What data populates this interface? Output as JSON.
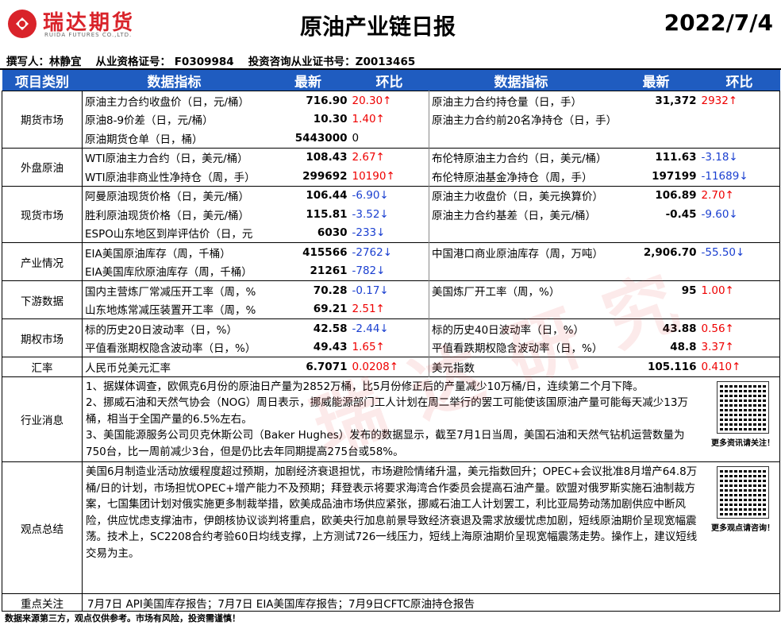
{
  "header": {
    "logo": "瑞达期货",
    "logo_en": "RUIDA FUTURES CO.,LTD.",
    "title": "原油产业链日报",
    "date": "2022/7/4"
  },
  "author": [
    "撰写人：林静宜",
    "从业资格证号：  F0309984",
    "投资咨询从业证书号：Z0013465"
  ],
  "table": {
    "columns": [
      "项目类别",
      "数据指标",
      "最新",
      "环比",
      "数据指标",
      "最新",
      "环比"
    ],
    "sections": [
      {
        "category": "期货市场",
        "rows": [
          [
            "原油主力合约收盘价（日，元/桶）",
            "716.90",
            "20.30↑",
            "原油主力合约持仓量（日，手）",
            "31,372",
            "2932↑"
          ],
          [
            "原油8-9价差（日，元/桶）",
            "10.30",
            "1.40↑",
            "原油主力合约前20名净持仓（日，手）",
            null,
            null
          ],
          [
            "原油期货仓单（日，桶）",
            "5443000",
            "0",
            null,
            null,
            null
          ]
        ]
      },
      {
        "category": "外盘原油",
        "rows": [
          [
            "WTI原油主力合约（日，美元/桶）",
            "108.43",
            "2.67↑",
            "布伦特原油主力合约（日，美元/桶）",
            "111.63",
            "-3.18↓"
          ],
          [
            " WTI原油非商业性净持仓（周，手）",
            "299692",
            "10190↑",
            "布伦特原油基金净持仓（周，手）",
            "197199",
            "-11689↓"
          ]
        ]
      },
      {
        "category": "现货市场",
        "rows": [
          [
            "阿曼原油现货价格（日，美元/桶）",
            "106.44",
            "-6.90↓",
            "原油主力收盘价（日，美元换算价）",
            "106.89",
            "2.70↑"
          ],
          [
            "胜利原油现货价格（日，美元/桶）",
            "115.81",
            "-3.52↓",
            "原油主力合约基差（日，美元/桶）",
            "-0.45",
            "-9.60↓"
          ],
          [
            "ESPO山东地区到岸评估价（日，元",
            "6030",
            "-233↓",
            null,
            null,
            null
          ]
        ]
      },
      {
        "category": "产业情况",
        "rows": [
          [
            "EIA美国原油库存（周，千桶）",
            "415566",
            "-2762↓",
            "中国港口商业原油库存（周，万吨）",
            "2,906.70",
            "-55.50↓"
          ],
          [
            "EIA美国库欣原油库存（周，千桶）",
            "21261",
            "-782↓",
            null,
            null,
            null
          ]
        ]
      },
      {
        "category": "下游数据",
        "rows": [
          [
            "国内主营炼厂常减压开工率（周，%",
            "70.28",
            "-0.17↓",
            "美国炼厂开工率（周，%）",
            "95",
            "1.00↑"
          ],
          [
            "山东地炼常减压装置开工率（周，%",
            "69.21",
            "2.51↑",
            null,
            null,
            null
          ]
        ]
      },
      {
        "category": "期权市场",
        "rows": [
          [
            "标的历史20日波动率（日，%）",
            "42.58",
            "-2.44↓",
            "标的历史40日波动率（日，%）",
            "43.88",
            "0.56↑"
          ],
          [
            "平值看涨期权隐含波动率（日，%）",
            "49.43",
            "1.65↑",
            "平值看跌期权隐含波动率（日，%）",
            "48.8",
            "3.37↑"
          ]
        ]
      },
      {
        "category": "汇率",
        "rows": [
          [
            "人民币兑美元汇率",
            "6.7071",
            "0.0208↑",
            "美元指数",
            "105.116",
            "0.410↑"
          ]
        ]
      }
    ],
    "news": {
      "category": "行业消息",
      "paragraphs": [
        "1、据媒体调查，欧佩克6月份的原油日产量为2852万桶，比5月份修正后的产量减少10万桶/日，连续第二个月下降。",
        "2、挪威石油和天然气协会（NOG）周日表示，挪威能源部门工人计划在周二举行的罢工可能使该国原油产量可能每天减少13万桶，相当于全国产量的6.5%左右。",
        "3、美国能源服务公司贝克休斯公司（Baker Hughes）发布的数据显示，截至7月1日当周，美国石油和天然气钻机运营数量为750台，比一周前减少3台，但是仍比去年同期提高275台或58%。"
      ],
      "qr_caption": "更多资讯请关注！"
    },
    "view": {
      "category": "观点总结",
      "text": "美国6月制造业活动放缓程度超过预期，加剧经济衰退担忧，市场避险情绪升温，美元指数回升；OPEC+会议批准8月增产64.8万桶/日的计划，市场担忧OPEC+增产能力不及预期；拜登表示将要求海湾合作委员会提高石油产量。欧盟对俄罗斯实施石油制裁方案，七国集团计划对俄实施更多制裁举措，欧美成品油市场供应紧张，挪威石油工人计划罢工，利比亚局势动荡加剧供应中断风险，供应忧虑支撑油市，伊朗核协议谈判将重启，欧美央行加息前景导致经济衰退及需求放缓忧虑加剧，短线原油期价呈现宽幅震荡。技术上，SC2208合约考验60日均线支撑，上方测试726一线压力，短线上海原油期价呈现宽幅震荡走势。操作上，建议短线交易为主。",
      "qr_caption": "更多观点请咨询！"
    },
    "focus": {
      "category": "重点关注",
      "text": "7月7日 API美国库存报告；7月7日 EIA美国库存报告；7月9日CFTC原油持仓报告"
    }
  },
  "watermark": "瑞达研究",
  "footer": "数据来源第三方，观点仅供参考。市场有风险，投资需谨慎！"
}
